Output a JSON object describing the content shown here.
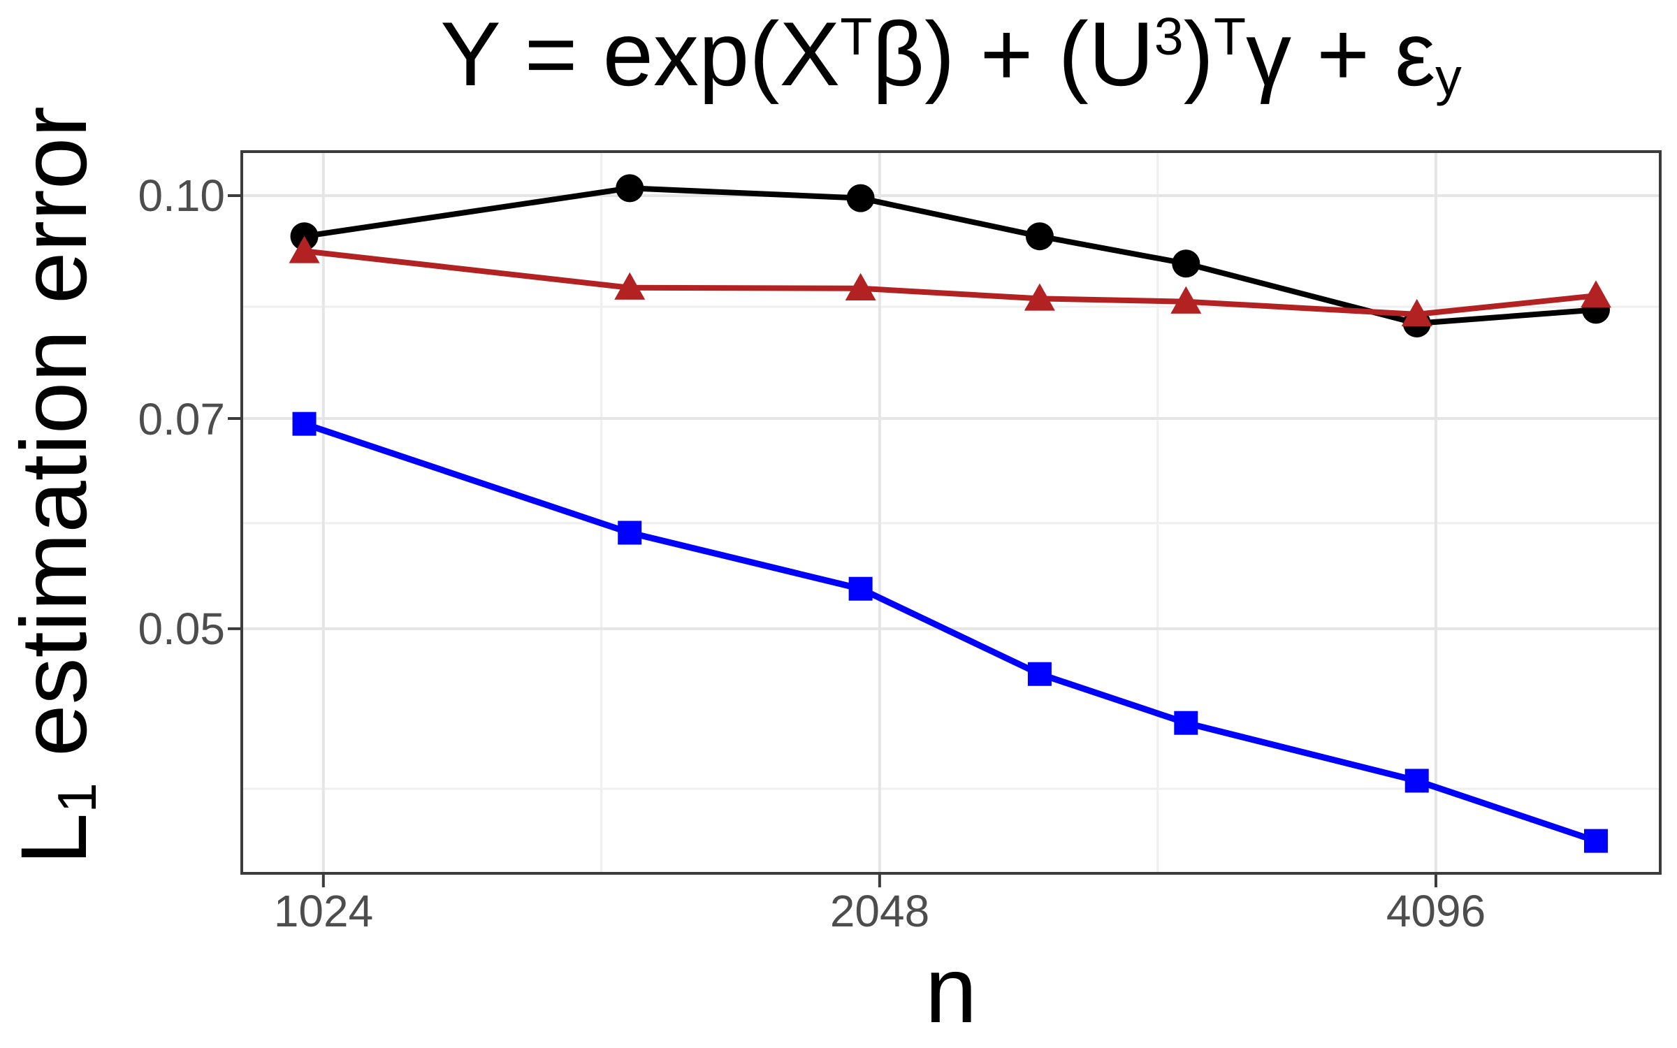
{
  "figure": {
    "title_segments": [
      {
        "t": "Y = exp("
      },
      {
        "t": "X"
      },
      {
        "t": "T",
        "s": "sup"
      },
      {
        "t": "β"
      },
      {
        "t": ") + ("
      },
      {
        "t": "U"
      },
      {
        "t": "3",
        "s": "sup"
      },
      {
        "t": ")"
      },
      {
        "t": "T",
        "s": "sup"
      },
      {
        "t": "γ + ε"
      },
      {
        "t": "y",
        "s": "sub"
      }
    ],
    "y_axis": {
      "label_segments": [
        {
          "t": "L"
        },
        {
          "t": "1",
          "s": "sub"
        },
        {
          "t": " estimation error"
        }
      ],
      "ticks": [
        {
          "value": 0.1,
          "label": "0.10"
        },
        {
          "value": 0.07,
          "label": "0.07"
        },
        {
          "value": 0.05,
          "label": "0.05"
        }
      ],
      "minor_breaks": [
        0.0837,
        0.0592,
        0.0387
      ],
      "scale": "log"
    },
    "x_axis": {
      "label": "n",
      "ticks": [
        {
          "value": 1024,
          "label": "1024"
        },
        {
          "value": 2048,
          "label": "2048"
        },
        {
          "value": 4096,
          "label": "4096"
        }
      ],
      "minor_breaks": [
        1448,
        2896
      ],
      "scale": "log2"
    },
    "style": {
      "background": "#FFFFFF",
      "grid_major": "#E5E5E5",
      "grid_minor": "#EFEFEF",
      "panel_border": "#3C3C3C",
      "tick_mark": "#3C3C3C",
      "tick_label_color": "#4D4D4D",
      "title_color": "#000000"
    }
  },
  "chart_data": {
    "type": "line",
    "title": "Y = exp(X^T beta) + (U^3)^T gamma + epsilon_y",
    "xlabel": "n",
    "ylabel": "L_1 estimation error",
    "x_scale": "log",
    "y_scale": "log",
    "xlim": [
      925,
      5417
    ],
    "ylim": [
      0.0338,
      0.1073
    ],
    "grid": "on",
    "legend": "none",
    "x": [
      1000,
      1500,
      2000,
      2500,
      3000,
      4000,
      5000
    ],
    "x_ticks": [
      1024,
      2048,
      4096
    ],
    "y_ticks": [
      0.1,
      0.07,
      0.05
    ],
    "x_minor": [
      1448,
      2896
    ],
    "y_minor": [
      0.0837,
      0.0592,
      0.0387
    ],
    "series": [
      {
        "name": "black-circles",
        "marker": "circle",
        "color": "#000000",
        "line_width": 8,
        "values": [
          0.0937,
          0.1012,
          0.0996,
          0.0937,
          0.0897,
          0.0815,
          0.0833
        ]
      },
      {
        "name": "darkred-triangles",
        "marker": "triangle",
        "color": "#B22222",
        "line_width": 8,
        "values": [
          0.0915,
          0.0863,
          0.0862,
          0.0848,
          0.0844,
          0.0827,
          0.0852
        ]
      },
      {
        "name": "blue-squares",
        "marker": "square",
        "color": "#0000FF",
        "line_width": 9,
        "values": [
          0.0694,
          0.0583,
          0.0533,
          0.0465,
          0.043,
          0.0392,
          0.0356
        ]
      }
    ]
  }
}
